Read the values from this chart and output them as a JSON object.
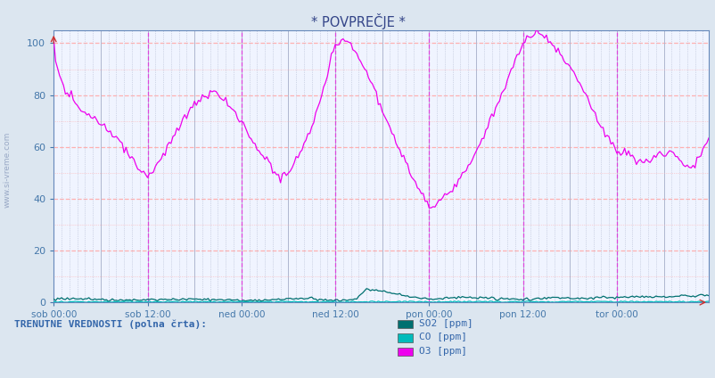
{
  "title": "* POVPREČJE *",
  "bg_color": "#dce6f0",
  "plot_bg_color": "#f0f4ff",
  "grid_color_major_h": "#ffb0b0",
  "grid_color_major_v": "#b0b8d0",
  "grid_color_minor": "#dde4f0",
  "tick_color": "#4477aa",
  "ylim": [
    0,
    105
  ],
  "yticks": [
    0,
    20,
    40,
    60,
    80,
    100
  ],
  "n_points": 336,
  "x_tick_labels": [
    "sob 00:00",
    "sob 12:00",
    "ned 00:00",
    "ned 12:00",
    "pon 00:00",
    "pon 12:00",
    "tor 00:00"
  ],
  "x_tick_positions": [
    0,
    48,
    96,
    144,
    192,
    240,
    288
  ],
  "vline_color": "#dd44dd",
  "vline_positions": [
    48,
    96,
    144,
    192,
    240,
    288
  ],
  "so2_color": "#007070",
  "co_color": "#00bbbb",
  "o3_color": "#ee00ee",
  "watermark_text": "www.si-vreme.com",
  "bottom_label": "TRENUTNE VREDNOSTI (polna črta):",
  "legend_items": [
    {
      "label": "SO2 [ppm]",
      "color": "#007070"
    },
    {
      "label": "CO [ppm]",
      "color": "#00bbbb"
    },
    {
      "label": "O3 [ppm]",
      "color": "#ee00ee"
    }
  ],
  "o3_ctrl_x": [
    0,
    2,
    6,
    10,
    16,
    22,
    28,
    34,
    40,
    44,
    48,
    52,
    58,
    64,
    70,
    76,
    82,
    88,
    96,
    100,
    108,
    116,
    122,
    128,
    134,
    140,
    144,
    148,
    152,
    158,
    164,
    170,
    176,
    182,
    188,
    192,
    196,
    202,
    208,
    214,
    220,
    226,
    230,
    234,
    240,
    244,
    248,
    254,
    260,
    266,
    272,
    278,
    284,
    288,
    292,
    298,
    304,
    310,
    316,
    322,
    328,
    334,
    336
  ],
  "o3_ctrl_y": [
    100,
    90,
    82,
    78,
    73,
    70,
    66,
    62,
    56,
    51,
    48,
    52,
    60,
    68,
    75,
    79,
    81,
    78,
    70,
    64,
    55,
    48,
    52,
    60,
    72,
    88,
    100,
    101,
    100,
    92,
    82,
    70,
    60,
    50,
    42,
    37,
    38,
    42,
    48,
    55,
    65,
    75,
    82,
    90,
    100,
    103,
    104,
    100,
    95,
    88,
    80,
    70,
    63,
    58,
    58,
    55,
    55,
    57,
    58,
    54,
    52,
    62,
    63
  ],
  "so2_ctrl_x": [
    0,
    20,
    40,
    60,
    80,
    100,
    130,
    144,
    155,
    160,
    170,
    180,
    192,
    210,
    230,
    240,
    255,
    270,
    288,
    310,
    336
  ],
  "so2_ctrl_y": [
    1.5,
    1.2,
    0.8,
    1.2,
    1.0,
    0.8,
    1.5,
    0.8,
    1.2,
    5.0,
    4.0,
    2.5,
    1.2,
    2.0,
    1.5,
    1.0,
    1.8,
    1.5,
    2.0,
    2.2,
    2.8
  ]
}
